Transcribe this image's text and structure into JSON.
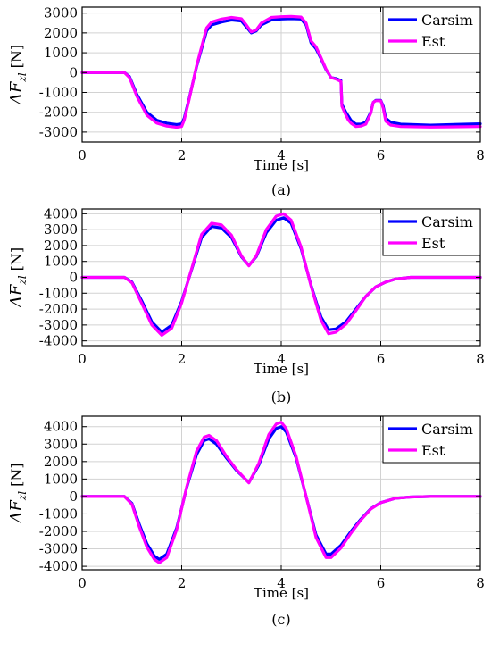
{
  "chart_data": [
    {
      "type": "line",
      "caption": "(a)",
      "title": "",
      "xlabel": "Time [s]",
      "ylabel_main": "ΔF",
      "ylabel_sub": "zl",
      "ylabel_unit": "[N]",
      "xlim": [
        0,
        8
      ],
      "ylim": [
        -3500,
        3300
      ],
      "xticks": [
        0,
        2,
        4,
        6,
        8
      ],
      "yticks": [
        -3000,
        -2000,
        -1000,
        0,
        1000,
        2000,
        3000
      ],
      "grid": true,
      "legend_position": "top-right",
      "series": [
        {
          "name": "Carsim",
          "color": "#0000ff",
          "x": [
            0,
            0.5,
            0.85,
            0.95,
            1.1,
            1.3,
            1.5,
            1.7,
            1.9,
            2.0,
            2.05,
            2.15,
            2.3,
            2.4,
            2.5,
            2.6,
            2.8,
            3.0,
            3.2,
            3.3,
            3.4,
            3.5,
            3.6,
            3.8,
            4.0,
            4.2,
            4.4,
            4.5,
            4.6,
            4.7,
            4.8,
            4.9,
            5.0,
            5.1,
            5.2,
            5.22,
            5.3,
            5.35,
            5.4,
            5.5,
            5.6,
            5.7,
            5.8,
            5.85,
            5.9,
            6.0,
            6.05,
            6.1,
            6.2,
            6.4,
            7.0,
            8.0
          ],
          "y": [
            0,
            0,
            0,
            -200,
            -1100,
            -2000,
            -2400,
            -2550,
            -2620,
            -2580,
            -2300,
            -1300,
            300,
            1200,
            2100,
            2400,
            2550,
            2650,
            2600,
            2300,
            2000,
            2100,
            2400,
            2650,
            2700,
            2720,
            2700,
            2400,
            1500,
            1200,
            700,
            150,
            -250,
            -300,
            -400,
            -1600,
            -2000,
            -2200,
            -2400,
            -2600,
            -2600,
            -2500,
            -2000,
            -1500,
            -1400,
            -1400,
            -1700,
            -2300,
            -2500,
            -2600,
            -2650,
            -2580
          ]
        },
        {
          "name": "Est",
          "color": "#ff00ff",
          "x": [
            0,
            0.5,
            0.85,
            0.95,
            1.1,
            1.3,
            1.5,
            1.7,
            1.9,
            2.0,
            2.05,
            2.15,
            2.3,
            2.4,
            2.5,
            2.6,
            2.8,
            3.0,
            3.2,
            3.3,
            3.4,
            3.5,
            3.6,
            3.8,
            4.0,
            4.2,
            4.4,
            4.5,
            4.6,
            4.7,
            4.8,
            4.9,
            5.0,
            5.1,
            5.2,
            5.22,
            5.3,
            5.35,
            5.4,
            5.5,
            5.6,
            5.7,
            5.8,
            5.85,
            5.9,
            6.0,
            6.05,
            6.1,
            6.2,
            6.4,
            7.0,
            8.0
          ],
          "y": [
            0,
            0,
            0,
            -250,
            -1200,
            -2150,
            -2550,
            -2700,
            -2760,
            -2720,
            -2400,
            -1350,
            350,
            1300,
            2250,
            2550,
            2700,
            2780,
            2720,
            2400,
            2050,
            2150,
            2500,
            2780,
            2820,
            2830,
            2800,
            2500,
            1600,
            1300,
            750,
            180,
            -250,
            -330,
            -450,
            -1700,
            -2150,
            -2400,
            -2550,
            -2720,
            -2700,
            -2600,
            -2050,
            -1500,
            -1420,
            -1420,
            -1800,
            -2450,
            -2650,
            -2720,
            -2750,
            -2720
          ]
        }
      ]
    },
    {
      "type": "line",
      "caption": "(b)",
      "title": "",
      "xlabel": "Time [s]",
      "ylabel_main": "ΔF",
      "ylabel_sub": "zl",
      "ylabel_unit": "[N]",
      "xlim": [
        0,
        8
      ],
      "ylim": [
        -4300,
        4300
      ],
      "xticks": [
        0,
        2,
        4,
        6,
        8
      ],
      "yticks": [
        -4000,
        -3000,
        -2000,
        -1000,
        0,
        1000,
        2000,
        3000,
        4000
      ],
      "grid": true,
      "legend_position": "top-right",
      "series": [
        {
          "name": "Carsim",
          "color": "#0000ff",
          "x": [
            0,
            0.5,
            0.85,
            1.0,
            1.2,
            1.4,
            1.6,
            1.8,
            2.0,
            2.2,
            2.4,
            2.6,
            2.8,
            3.0,
            3.2,
            3.35,
            3.5,
            3.7,
            3.9,
            4.05,
            4.2,
            4.4,
            4.6,
            4.8,
            4.95,
            5.1,
            5.3,
            5.5,
            5.7,
            5.9,
            6.1,
            6.3,
            6.6,
            7.0,
            8.0
          ],
          "y": [
            0,
            0,
            0,
            -300,
            -1500,
            -2800,
            -3450,
            -3000,
            -1500,
            500,
            2500,
            3200,
            3100,
            2500,
            1300,
            750,
            1300,
            2800,
            3600,
            3750,
            3400,
            1800,
            -500,
            -2500,
            -3300,
            -3250,
            -2800,
            -2000,
            -1200,
            -600,
            -300,
            -100,
            0,
            0,
            0
          ]
        },
        {
          "name": "Est",
          "color": "#ff00ff",
          "x": [
            0,
            0.5,
            0.85,
            1.0,
            1.2,
            1.4,
            1.6,
            1.8,
            2.0,
            2.2,
            2.4,
            2.6,
            2.8,
            3.0,
            3.2,
            3.35,
            3.5,
            3.7,
            3.9,
            4.05,
            4.2,
            4.4,
            4.6,
            4.8,
            4.95,
            5.1,
            5.3,
            5.5,
            5.7,
            5.9,
            6.1,
            6.3,
            6.6,
            7.0,
            8.0
          ],
          "y": [
            0,
            0,
            0,
            -350,
            -1650,
            -3000,
            -3650,
            -3200,
            -1600,
            550,
            2700,
            3400,
            3300,
            2650,
            1350,
            720,
            1350,
            3000,
            3850,
            4000,
            3600,
            1900,
            -550,
            -2700,
            -3550,
            -3450,
            -2950,
            -2100,
            -1200,
            -600,
            -300,
            -100,
            0,
            0,
            0
          ]
        }
      ]
    },
    {
      "type": "line",
      "caption": "(c)",
      "title": "",
      "xlabel": "Time [s]",
      "ylabel_main": "ΔF",
      "ylabel_sub": "zl",
      "ylabel_unit": "[N]",
      "xlim": [
        0,
        8
      ],
      "ylim": [
        -4200,
        4600
      ],
      "xticks": [
        0,
        2,
        4,
        6,
        8
      ],
      "yticks": [
        -4000,
        -3000,
        -2000,
        -1000,
        0,
        1000,
        2000,
        3000,
        4000
      ],
      "grid": true,
      "legend_position": "top-right",
      "series": [
        {
          "name": "Carsim",
          "color": "#0000ff",
          "x": [
            0,
            0.5,
            0.85,
            1.0,
            1.15,
            1.3,
            1.45,
            1.55,
            1.7,
            1.9,
            2.1,
            2.3,
            2.45,
            2.55,
            2.7,
            2.9,
            3.1,
            3.35,
            3.55,
            3.75,
            3.9,
            4.0,
            4.1,
            4.3,
            4.5,
            4.7,
            4.9,
            5.0,
            5.2,
            5.4,
            5.6,
            5.8,
            6.0,
            6.3,
            6.6,
            7.0,
            8.0
          ],
          "y": [
            0,
            0,
            0,
            -400,
            -1600,
            -2700,
            -3400,
            -3600,
            -3300,
            -1800,
            500,
            2400,
            3200,
            3300,
            3000,
            2200,
            1500,
            800,
            1800,
            3300,
            3900,
            4000,
            3700,
            2200,
            0,
            -2200,
            -3300,
            -3300,
            -2800,
            -2000,
            -1300,
            -700,
            -350,
            -100,
            -30,
            0,
            0
          ]
        },
        {
          "name": "Est",
          "color": "#ff00ff",
          "x": [
            0,
            0.5,
            0.85,
            1.0,
            1.15,
            1.3,
            1.45,
            1.55,
            1.7,
            1.9,
            2.1,
            2.3,
            2.45,
            2.55,
            2.7,
            2.9,
            3.1,
            3.35,
            3.55,
            3.75,
            3.9,
            4.0,
            4.1,
            4.3,
            4.5,
            4.7,
            4.9,
            5.0,
            5.2,
            5.4,
            5.6,
            5.8,
            6.0,
            6.3,
            6.6,
            7.0,
            8.0
          ],
          "y": [
            0,
            0,
            0,
            -450,
            -1750,
            -2900,
            -3600,
            -3800,
            -3500,
            -1900,
            550,
            2600,
            3400,
            3500,
            3200,
            2300,
            1550,
            780,
            1900,
            3550,
            4150,
            4250,
            3900,
            2300,
            0,
            -2350,
            -3500,
            -3500,
            -2950,
            -2100,
            -1350,
            -720,
            -360,
            -100,
            -30,
            0,
            0
          ]
        }
      ]
    }
  ]
}
